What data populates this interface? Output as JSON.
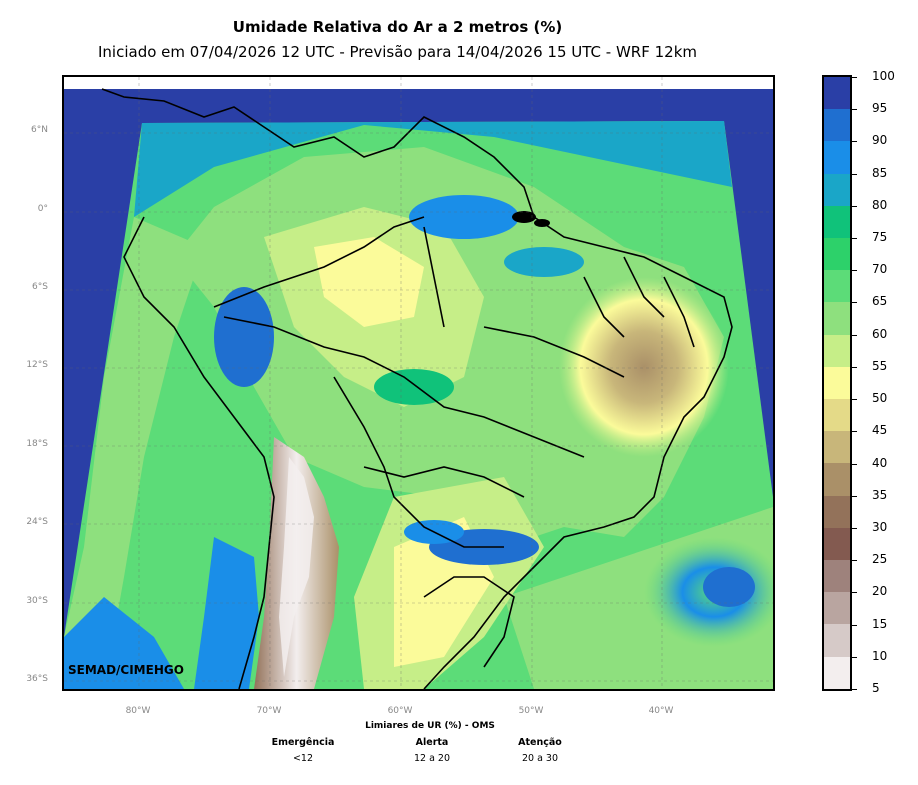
{
  "title": "Umidade Relativa do Ar a 2 metros (%)",
  "subtitle": "Iniciado em 07/04/2026 12 UTC - Previsão para 14/04/2026 15 UTC - WRF 12km",
  "credit": "SEMAD/CIMEHGO",
  "lat_labels": [
    "6°N",
    "0°",
    "6°S",
    "12°S",
    "18°S",
    "24°S",
    "30°S",
    "36°S"
  ],
  "lon_labels": [
    "80°W",
    "70°W",
    "60°W",
    "50°W",
    "40°W"
  ],
  "colorbar": {
    "ticks": [
      "100",
      "95",
      "90",
      "85",
      "80",
      "75",
      "70",
      "65",
      "60",
      "55",
      "50",
      "45",
      "40",
      "35",
      "30",
      "25",
      "20",
      "15",
      "10",
      "5"
    ],
    "colors": [
      "#2a3fa6",
      "#1f6fd0",
      "#1a8ee8",
      "#1aa6c8",
      "#10c27a",
      "#2dd16a",
      "#5cdc78",
      "#8ee07e",
      "#c6ee88",
      "#fbfb9a",
      "#e4da88",
      "#c8b67a",
      "#aa9068",
      "#93725a",
      "#835a50",
      "#9e827c",
      "#b9a5a0",
      "#d6cac8",
      "#f3eeee"
    ]
  },
  "oms": {
    "title": "Limiares de UR (%) - OMS",
    "columns": [
      {
        "name": "Emergência",
        "value": "<12"
      },
      {
        "name": "Alerta",
        "value": "12 a 20"
      },
      {
        "name": "Atenção",
        "value": "20 a 30"
      }
    ]
  }
}
